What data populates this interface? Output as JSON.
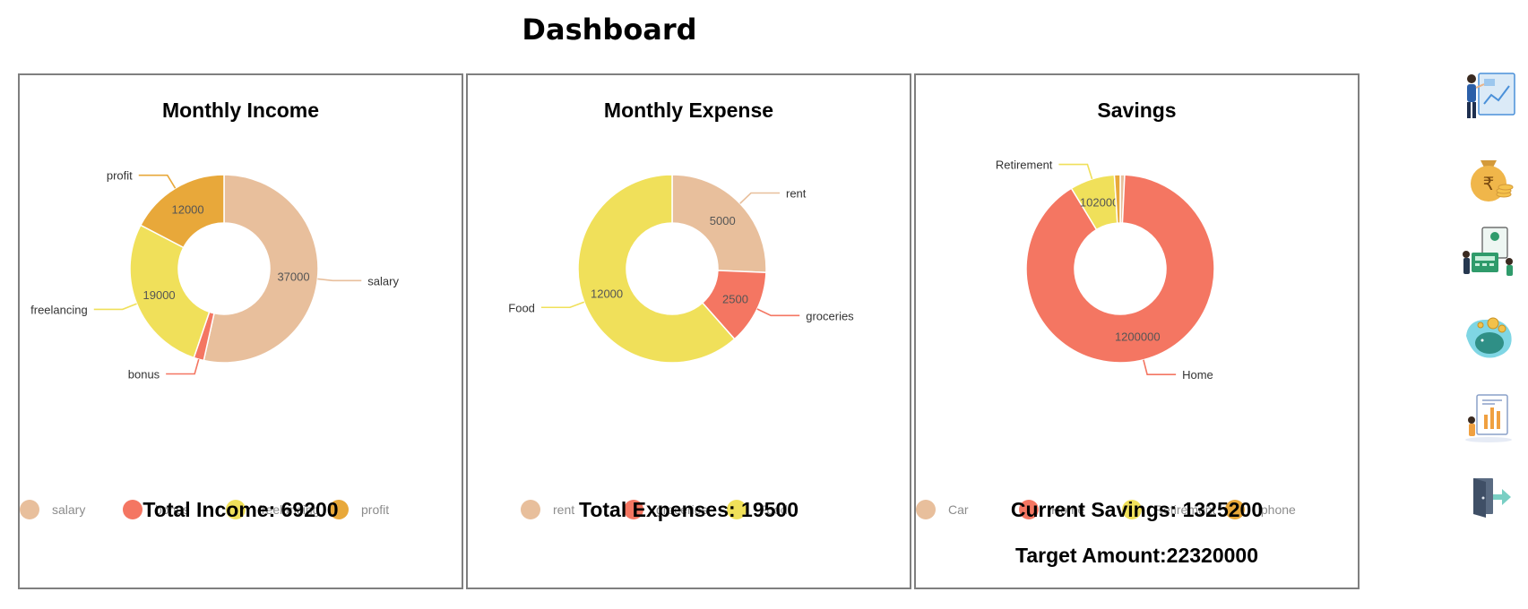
{
  "page": {
    "title": "Dashboard"
  },
  "panels": {
    "income": {
      "title": "Monthly Income",
      "total_label": "Total Income: 69200"
    },
    "expense": {
      "title": "Monthly Expense",
      "total_label": "Total Expenses: 19500"
    },
    "savings": {
      "title": "Savings",
      "total_label": "Current Savings: 1325200",
      "target_label": "Target Amount:22320000"
    }
  },
  "chart_data": [
    {
      "type": "pie",
      "variant": "doughnut",
      "title": "Monthly Income",
      "legend": "bottom",
      "categories": [
        "salary",
        "bonus",
        "freelancing",
        "profit"
      ],
      "values": [
        37000,
        1200,
        19000,
        12000
      ],
      "data_labels": [
        "37000",
        "",
        "19000",
        "12000"
      ],
      "colors": [
        "#e8bf9c",
        "#f47662",
        "#f0e05a",
        "#e8a83a"
      ]
    },
    {
      "type": "pie",
      "variant": "doughnut",
      "title": "Monthly Expense",
      "legend": "bottom",
      "categories": [
        "rent",
        "groceries",
        "Food"
      ],
      "values": [
        5000,
        2500,
        12000
      ],
      "data_labels": [
        "5000",
        "2500",
        "12000"
      ],
      "colors": [
        "#e8bf9c",
        "#f47662",
        "#f0e05a"
      ]
    },
    {
      "type": "pie",
      "variant": "doughnut",
      "title": "Savings",
      "legend": "bottom",
      "categories": [
        "Car",
        "Home",
        "Retirement",
        "Iphone"
      ],
      "values": [
        10000,
        1200000,
        102000,
        13200
      ],
      "data_labels": [
        "",
        "1200000",
        "102000",
        ""
      ],
      "outer_labels": [
        "",
        "Home",
        "Retirement",
        ""
      ],
      "colors": [
        "#e8bf9c",
        "#f47662",
        "#f0e05a",
        "#e8a83a"
      ]
    }
  ],
  "sidebar": {
    "items": [
      {
        "icon": "dashboard-presentation-icon"
      },
      {
        "icon": "money-bag-rupee-icon"
      },
      {
        "icon": "expense-calculator-icon"
      },
      {
        "icon": "piggy-bank-savings-icon"
      },
      {
        "icon": "report-chart-icon"
      },
      {
        "icon": "logout-door-icon"
      }
    ]
  }
}
